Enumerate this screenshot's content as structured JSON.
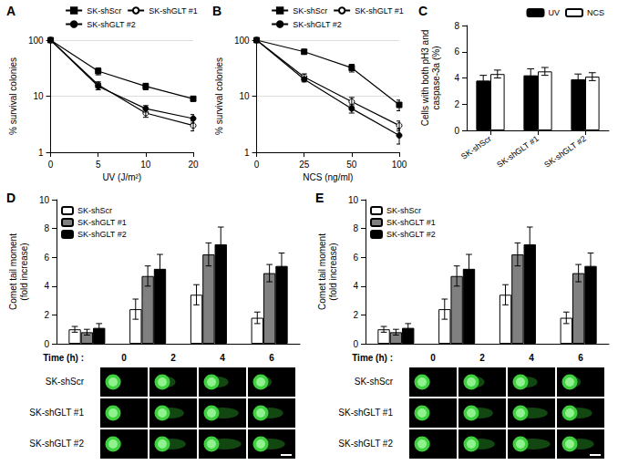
{
  "chart_data": [
    {
      "panel_label": "A",
      "type": "line",
      "x_label": "UV (J/m²)",
      "y_label": "% survival colonies",
      "categories": [
        "0",
        "5",
        "10",
        "20"
      ],
      "ylim": [
        1,
        100
      ],
      "yticks": [
        1,
        10,
        100
      ],
      "log": "y",
      "grid": true,
      "legend": "top",
      "series": [
        {
          "name": "SK-shScr",
          "color": "#000000",
          "marker": "square",
          "values": [
            100,
            28,
            15,
            9
          ],
          "errors": [
            0,
            4,
            2,
            0.8
          ]
        },
        {
          "name": "SK-shGLT #1",
          "color": "#000000",
          "marker": "circle-open",
          "values": [
            100,
            16,
            5,
            3
          ],
          "errors": [
            0,
            2,
            0.8,
            0.6
          ]
        },
        {
          "name": "SK-shGLT #2",
          "color": "#000000",
          "marker": "circle",
          "values": [
            100,
            15,
            6,
            4
          ],
          "errors": [
            0,
            2,
            0.8,
            0.7
          ]
        }
      ]
    },
    {
      "panel_label": "B",
      "type": "line",
      "x_label": "NCS (ng/ml)",
      "y_label": "% survival colonies",
      "categories": [
        "0",
        "25",
        "50",
        "100"
      ],
      "ylim": [
        1,
        100
      ],
      "yticks": [
        1,
        10,
        100
      ],
      "log": "y",
      "grid": true,
      "legend": "top",
      "series": [
        {
          "name": "SK-shScr",
          "color": "#000000",
          "marker": "square",
          "values": [
            100,
            62,
            32,
            7
          ],
          "errors": [
            0,
            5,
            5,
            1.5
          ]
        },
        {
          "name": "SK-shGLT #1",
          "color": "#000000",
          "marker": "circle-open",
          "values": [
            100,
            22,
            8,
            3
          ],
          "errors": [
            0,
            3,
            1.5,
            0.6
          ]
        },
        {
          "name": "SK-shGLT #2",
          "color": "#000000",
          "marker": "circle",
          "values": [
            100,
            20,
            6,
            2
          ],
          "errors": [
            0,
            2,
            1,
            0.6
          ]
        }
      ]
    },
    {
      "panel_label": "C",
      "type": "bar",
      "y_label": "Cells with both pH3 and\ncaspase-3a (%)",
      "categories": [
        "SK-shScr",
        "SK-shGLT #1",
        "SK-shGLT #2"
      ],
      "ylim": [
        0,
        8
      ],
      "yticks": [
        0,
        2,
        4,
        6,
        8
      ],
      "grid": false,
      "legend": "top-right",
      "series": [
        {
          "name": "UV",
          "color": "#000000",
          "values": [
            3.8,
            4.2,
            3.9
          ],
          "errors": [
            0.4,
            0.5,
            0.4
          ]
        },
        {
          "name": "NCS",
          "color": "#ffffff",
          "values": [
            4.3,
            4.5,
            4.1
          ],
          "errors": [
            0.3,
            0.3,
            0.3
          ]
        }
      ]
    },
    {
      "panel_label": "D",
      "type": "bar",
      "y_label": "Comet tail moment\n(fold increase)",
      "x_label": "Time (h) :",
      "categories": [
        "0",
        "2",
        "4",
        "6"
      ],
      "ylim": [
        0,
        10
      ],
      "yticks": [
        0,
        2,
        4,
        6,
        8,
        10
      ],
      "grid": false,
      "legend": "top-left",
      "tick_labels": "y",
      "series": [
        {
          "name": "SK-shScr",
          "color": "#ffffff",
          "values": [
            1.0,
            2.4,
            3.4,
            1.8
          ],
          "errors": [
            0.2,
            0.7,
            0.7,
            0.4
          ]
        },
        {
          "name": "SK-shGLT #1",
          "color": "#808080",
          "values": [
            0.8,
            4.7,
            6.2,
            4.9
          ],
          "errors": [
            0.2,
            0.7,
            0.8,
            0.6
          ]
        },
        {
          "name": "SK-shGLT #2",
          "color": "#000000",
          "values": [
            1.1,
            5.2,
            6.9,
            5.4
          ],
          "errors": [
            0.3,
            1.0,
            1.2,
            0.9
          ]
        }
      ],
      "image_rows": [
        "SK-shScr",
        "SK-shGLT #1",
        "SK-shGLT #2"
      ]
    },
    {
      "panel_label": "E",
      "type": "bar",
      "y_label": "Comet tail moment\n(fold increase)",
      "x_label": "Time (h) :",
      "categories": [
        "0",
        "2",
        "4",
        "6"
      ],
      "ylim": [
        0,
        10
      ],
      "yticks": [
        0,
        2,
        4,
        6,
        8,
        10
      ],
      "grid": false,
      "legend": "top-left",
      "tick_labels": "y",
      "series": [
        {
          "name": "SK-shScr",
          "color": "#ffffff",
          "values": [
            1.0,
            2.4,
            3.4,
            1.8
          ],
          "errors": [
            0.2,
            0.7,
            0.7,
            0.4
          ]
        },
        {
          "name": "SK-shGLT #1",
          "color": "#808080",
          "values": [
            0.8,
            4.7,
            6.2,
            4.9
          ],
          "errors": [
            0.2,
            0.7,
            0.8,
            0.6
          ]
        },
        {
          "name": "SK-shGLT #2",
          "color": "#000000",
          "values": [
            1.1,
            5.2,
            6.9,
            5.4
          ],
          "errors": [
            0.3,
            1.0,
            1.2,
            0.9
          ]
        }
      ],
      "image_rows": [
        "SK-shScr",
        "SK-shGLT #1",
        "SK-shGLT #2"
      ]
    }
  ]
}
